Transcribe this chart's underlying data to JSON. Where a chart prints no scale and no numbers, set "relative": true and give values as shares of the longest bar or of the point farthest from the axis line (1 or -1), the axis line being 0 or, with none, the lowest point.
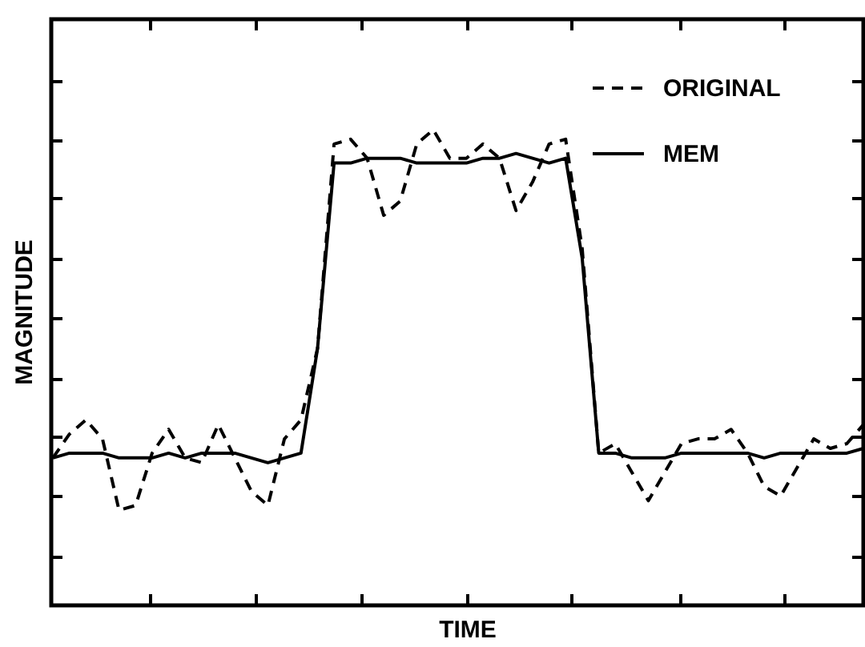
{
  "chart_data": {
    "type": "line",
    "relative": true,
    "xlabel": "TIME",
    "ylabel": "MAGNITUDE",
    "legend": "top right",
    "categories": [
      null,
      null,
      null,
      null,
      null,
      null,
      null,
      null,
      null,
      null,
      null,
      null,
      null,
      null,
      null,
      null,
      null,
      null,
      null,
      null,
      null,
      null,
      null,
      null,
      null,
      null,
      null,
      null,
      null,
      null,
      null,
      null,
      null,
      null,
      null,
      null,
      null,
      null,
      null,
      null,
      null,
      null,
      null,
      null,
      null,
      null,
      null,
      null,
      null,
      null
    ],
    "series": [
      {
        "name": "ORIGINAL",
        "color": "#000000",
        "line_style": "dashed",
        "values": [
          0.31,
          0.36,
          0.39,
          0.35,
          0.2,
          0.21,
          0.32,
          0.37,
          0.31,
          0.3,
          0.38,
          0.31,
          0.24,
          0.21,
          0.35,
          0.39,
          0.54,
          0.97,
          0.98,
          0.94,
          0.82,
          0.85,
          0.97,
          1.0,
          0.94,
          0.94,
          0.97,
          0.94,
          0.83,
          0.89,
          0.97,
          0.98,
          0.75,
          0.32,
          0.34,
          0.28,
          0.22,
          0.28,
          0.34,
          0.35,
          0.35,
          0.37,
          0.32,
          0.25,
          0.23,
          0.29,
          0.35,
          0.33,
          0.34,
          0.38
        ]
      },
      {
        "name": "MEM",
        "color": "#000000",
        "line_style": "solid",
        "values": [
          0.31,
          0.32,
          0.32,
          0.32,
          0.31,
          0.31,
          0.31,
          0.32,
          0.31,
          0.32,
          0.32,
          0.32,
          0.31,
          0.3,
          0.31,
          0.32,
          0.54,
          0.93,
          0.93,
          0.94,
          0.94,
          0.94,
          0.93,
          0.93,
          0.93,
          0.93,
          0.94,
          0.94,
          0.95,
          0.94,
          0.93,
          0.94,
          0.73,
          0.32,
          0.32,
          0.31,
          0.31,
          0.31,
          0.32,
          0.32,
          0.32,
          0.32,
          0.32,
          0.31,
          0.32,
          0.32,
          0.32,
          0.32,
          0.32,
          0.33
        ]
      }
    ]
  }
}
